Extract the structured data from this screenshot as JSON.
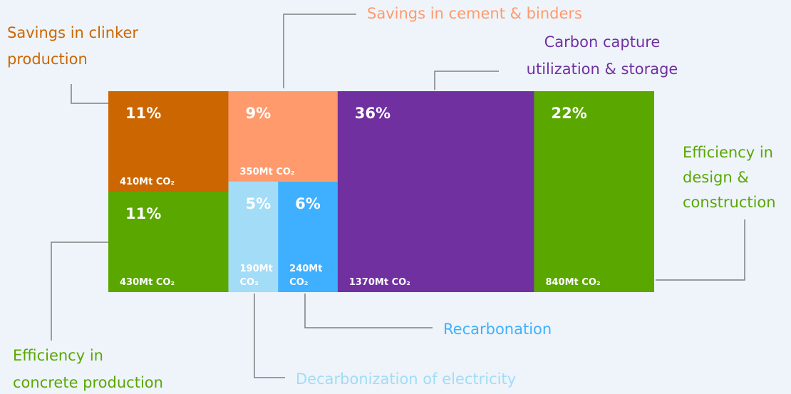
{
  "chart_data": {
    "type": "treemap",
    "segments": [
      {
        "name": [
          "Savings in clinker",
          "production"
        ],
        "color": "#cc6600",
        "value": 11,
        "value_label": "11%",
        "emissions": 410,
        "emissions_label": "410Mt CO₂"
      },
      {
        "name": [
          "Efficiency in",
          "concrete production"
        ],
        "color": "#5aa700",
        "value": 11,
        "value_label": "11%",
        "emissions": 430,
        "emissions_label": "430Mt CO₂"
      },
      {
        "name": [
          "Savings in cement & binders"
        ],
        "color": "#ff9a6c",
        "value": 9,
        "value_label": "9%",
        "emissions": 350,
        "emissions_label": "350Mt CO₂"
      },
      {
        "name": [
          "Decarbonization of electricity"
        ],
        "color": "#a2dcf7",
        "value": 5,
        "value_label": "5%",
        "emissions": 190,
        "emissions_label": "190Mt CO₂"
      },
      {
        "name": [
          "Recarbonation"
        ],
        "color": "#3fb0ff",
        "value": 6,
        "value_label": "6%",
        "emissions": 240,
        "emissions_label": "240Mt CO₂"
      },
      {
        "name": [
          "Carbon capture",
          "utilization & storage"
        ],
        "color": "#7030a0",
        "value": 36,
        "value_label": "36%",
        "emissions": 1370,
        "emissions_label": "1370Mt CO₂"
      },
      {
        "name": [
          "Efficiency in",
          "design &",
          "construction"
        ],
        "color": "#5aa700",
        "value": 22,
        "value_label": "22%",
        "emissions": 840,
        "emissions_label": "840Mt CO₂"
      }
    ]
  }
}
